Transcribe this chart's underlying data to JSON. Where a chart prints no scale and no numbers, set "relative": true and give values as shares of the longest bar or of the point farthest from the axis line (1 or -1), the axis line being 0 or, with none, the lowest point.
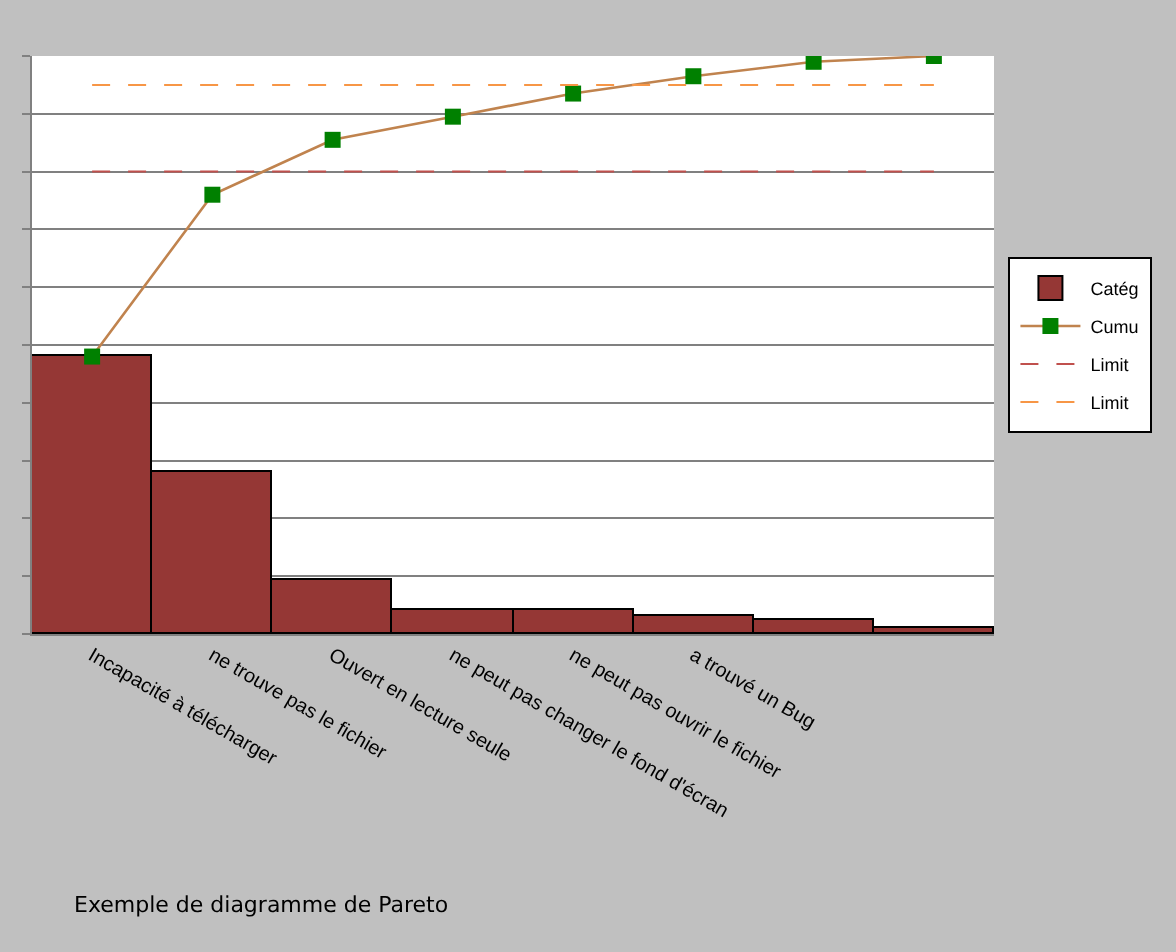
{
  "chart_data": {
    "type": "bar",
    "relative": true,
    "categories": [
      "Incapacité à télécharger",
      "ne trouve pas le fichier",
      "Ouvert en lecture seule",
      "ne peut pas changer le fond d'écran",
      "ne peut pas ouvrir le fichier",
      "a trouvé un Bug",
      null,
      null
    ],
    "series": [
      {
        "name": "Catég",
        "color": "#953735",
        "values": [
          0.48,
          0.28,
          0.095,
          0.04,
          0.04,
          0.03,
          0.025,
          0.01
        ]
      },
      {
        "name": "Cumu",
        "type": "line",
        "color": "#c0834e",
        "marker": "square",
        "colors": [
          "#008000",
          "#008000",
          "#008000",
          "#008000",
          "#008000",
          "#008000",
          "#008000",
          "#008000"
        ],
        "values": [
          0.48,
          0.76,
          0.855,
          0.895,
          0.935,
          0.965,
          0.99,
          1.0
        ]
      }
    ],
    "ref_lines": [
      {
        "axis": "y",
        "value": 0.8,
        "label": "Limit",
        "color": "#c0504d",
        "line_style": "dashed"
      },
      {
        "axis": "y",
        "value": 0.95,
        "label": "Limit",
        "color": "#f79646",
        "line_style": "dashed"
      }
    ],
    "grid": "y",
    "legend": "right",
    "annotations": [
      "Exemple de diagramme de Pareto"
    ]
  }
}
